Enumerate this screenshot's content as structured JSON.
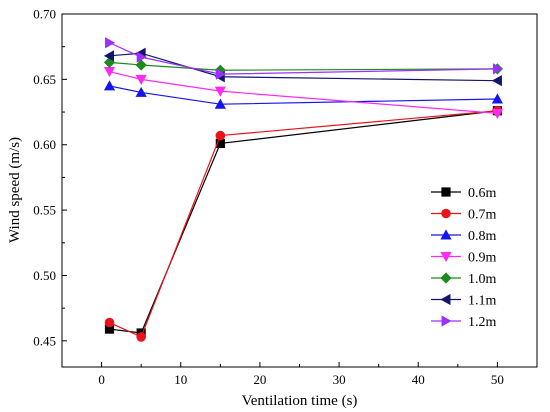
{
  "chart_data": {
    "type": "line",
    "title": "",
    "xlabel": "Ventilation time (s)",
    "ylabel": "Wind speed (m/s)",
    "xlim": [
      -5,
      55
    ],
    "ylim": [
      0.43,
      0.7
    ],
    "xticks": [
      0,
      10,
      20,
      30,
      40,
      50
    ],
    "yticks": [
      0.45,
      0.5,
      0.55,
      0.6,
      0.65,
      0.7
    ],
    "xtick_labels": [
      "0",
      "10",
      "20",
      "30",
      "40",
      "50"
    ],
    "ytick_labels": [
      "0.45",
      "0.50",
      "0.55",
      "0.60",
      "0.65",
      "0.70"
    ],
    "x": [
      1,
      5,
      15,
      50
    ],
    "grid": false,
    "legend_position": "lower-right",
    "series": [
      {
        "name": "0.6m",
        "color": "#000000",
        "marker": "square",
        "values": [
          0.459,
          0.456,
          0.601,
          0.626
        ]
      },
      {
        "name": "0.7m",
        "color": "#e8141c",
        "marker": "circle",
        "values": [
          0.464,
          0.453,
          0.607,
          0.626
        ]
      },
      {
        "name": "0.8m",
        "color": "#1515f0",
        "marker": "triangle-up",
        "values": [
          0.645,
          0.64,
          0.631,
          0.635
        ]
      },
      {
        "name": "0.9m",
        "color": "#ff2bf0",
        "marker": "triangle-down",
        "values": [
          0.656,
          0.65,
          0.641,
          0.624
        ]
      },
      {
        "name": "1.0m",
        "color": "#1c8a1c",
        "marker": "diamond",
        "values": [
          0.663,
          0.661,
          0.657,
          0.658
        ]
      },
      {
        "name": "1.1m",
        "color": "#14146e",
        "marker": "triangle-left",
        "values": [
          0.668,
          0.67,
          0.652,
          0.649
        ]
      },
      {
        "name": "1.2m",
        "color": "#9b30ff",
        "marker": "triangle-right",
        "values": [
          0.678,
          0.667,
          0.654,
          0.658
        ]
      }
    ]
  }
}
